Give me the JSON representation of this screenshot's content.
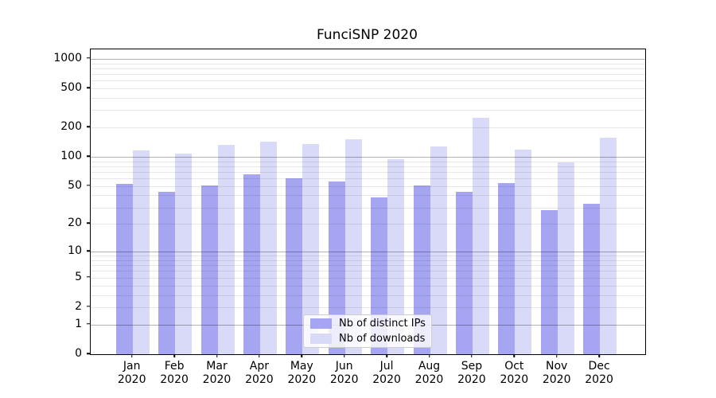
{
  "chart_data": {
    "type": "bar",
    "title": "FunciSNP 2020",
    "categories": [
      "Jan 2020",
      "Feb 2020",
      "Mar 2020",
      "Apr 2020",
      "May 2020",
      "Jun 2020",
      "Jul 2020",
      "Aug 2020",
      "Sep 2020",
      "Oct 2020",
      "Nov 2020",
      "Dec 2020"
    ],
    "series": [
      {
        "name": "Nb of distinct IPs",
        "color": "#a5a5f2",
        "values": [
          53,
          44,
          51,
          66,
          60,
          56,
          38,
          51,
          44,
          54,
          28,
          33
        ]
      },
      {
        "name": "Nb of downloads",
        "color": "#d9d9f8",
        "values": [
          116,
          107,
          133,
          144,
          136,
          151,
          94,
          127,
          252,
          118,
          88,
          158
        ]
      }
    ],
    "xlabel": "",
    "ylabel": "",
    "y_ticks": [
      0,
      1,
      2,
      5,
      10,
      20,
      50,
      100,
      200,
      500,
      1000
    ],
    "y_scale": "log(value+1)",
    "ylim": [
      0,
      1250
    ],
    "grid": "horizontal major and minor gridlines, drawn over bars",
    "legend_position": "bottom-center inside plot",
    "colors": {
      "grid_major": "#b0b0b0",
      "grid_minor": "#e8e8e8",
      "axis_box": "#000000",
      "background": "#ffffff"
    }
  }
}
